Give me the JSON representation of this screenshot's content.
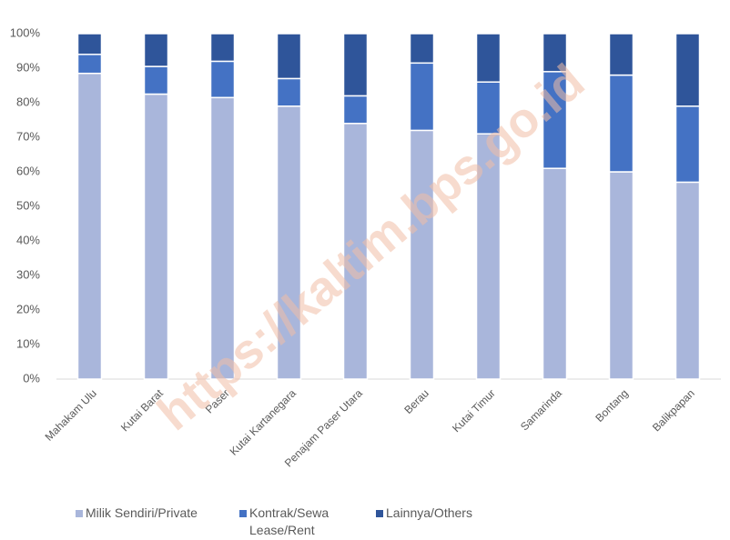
{
  "chart_data": {
    "type": "stacked_bar",
    "categories": [
      "Mahakam Ulu",
      "Kutai Barat",
      "Paser",
      "Kutai Kartanegara",
      "Penajam Paser Utara",
      "Berau",
      "Kutai Timur",
      "Samarinda",
      "Bontang",
      "Balikpapan"
    ],
    "series": [
      {
        "name": "Milik Sendiri/Private",
        "color": "#a9b6db",
        "values": [
          88.5,
          82.5,
          81.5,
          79,
          74,
          72,
          71,
          61,
          60,
          57
        ]
      },
      {
        "name": "Kontrak/Sewa Lease/Rent",
        "color": "#4472c4",
        "values": [
          5.5,
          8,
          10.5,
          8,
          8,
          19.5,
          15,
          28,
          28,
          22
        ]
      },
      {
        "name": "Lainnya/Others",
        "color": "#2f559a",
        "values": [
          6,
          9.5,
          8,
          13,
          18,
          8.5,
          14,
          11,
          12,
          21
        ]
      }
    ],
    "ylim": [
      0,
      100
    ],
    "yticks": [
      {
        "value": 0,
        "label": "0%"
      },
      {
        "value": 10,
        "label": "10%"
      },
      {
        "value": 20,
        "label": "20%"
      },
      {
        "value": 30,
        "label": "30%"
      },
      {
        "value": 40,
        "label": "40%"
      },
      {
        "value": 50,
        "label": "50%"
      },
      {
        "value": 60,
        "label": "60%"
      },
      {
        "value": 70,
        "label": "70%"
      },
      {
        "value": 80,
        "label": "80%"
      },
      {
        "value": 90,
        "label": "90%"
      },
      {
        "value": 100,
        "label": "100%"
      }
    ],
    "legend": "bottom",
    "watermark": "https://kaltim.bps.go.id"
  }
}
